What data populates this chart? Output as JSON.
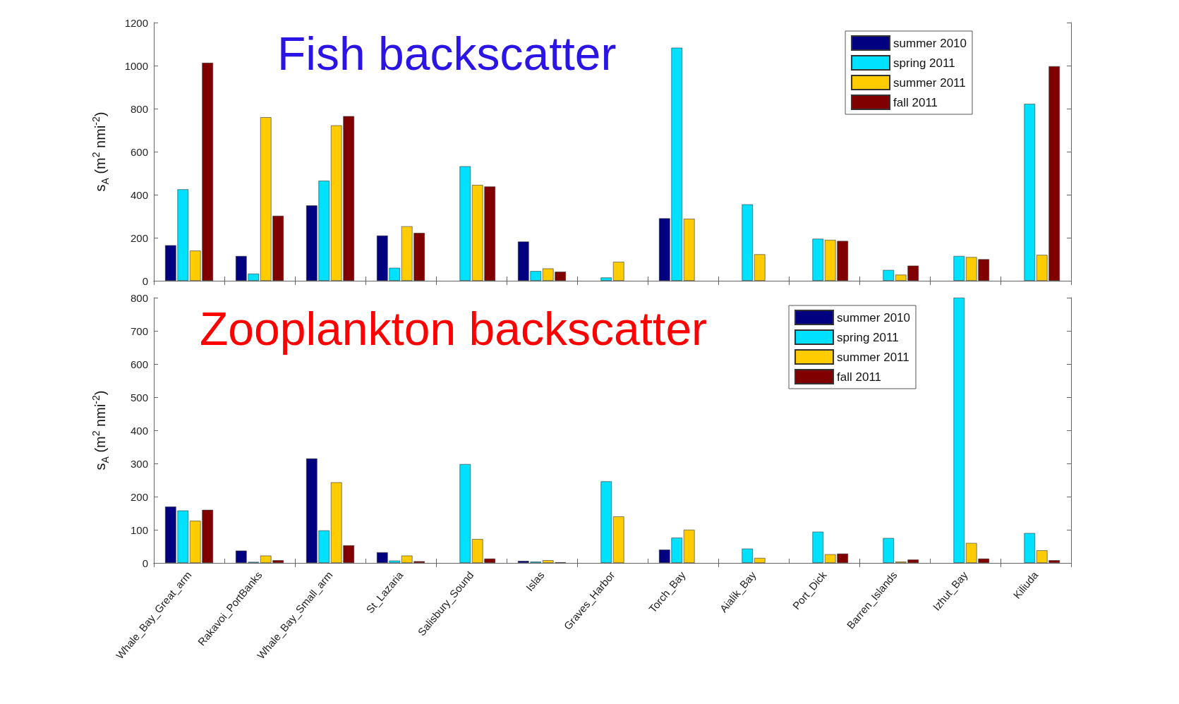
{
  "chart_data": [
    {
      "type": "bar",
      "title": "Fish backscatter",
      "ylabel": "s$_{A}$ (m$^{2}$ nmi$^{-2}$)",
      "categories": [
        null,
        null,
        null,
        null,
        null,
        null,
        null,
        null,
        null,
        null,
        null,
        null,
        null
      ],
      "series": [
        {
          "name": "summer 2010",
          "color": "#000080",
          "values": [
            165,
            115,
            350,
            210,
            null,
            182,
            null,
            290,
            null,
            null,
            null,
            null,
            null
          ]
        },
        {
          "name": "spring 2011",
          "color": "#00e0ff",
          "values": [
            425,
            33,
            465,
            60,
            532,
            45,
            15,
            1083,
            355,
            195,
            50,
            115,
            822
          ]
        },
        {
          "name": "summer 2011",
          "color": "#ffcc00",
          "values": [
            140,
            760,
            722,
            253,
            445,
            57,
            88,
            288,
            123,
            190,
            28,
            110,
            120
          ]
        },
        {
          "name": "fall 2011",
          "color": "#800000",
          "values": [
            1013,
            302,
            765,
            222,
            438,
            42,
            null,
            null,
            null,
            185,
            70,
            100,
            997
          ]
        }
      ],
      "ylim": [
        0,
        1200
      ],
      "yticks": [
        0,
        200,
        400,
        600,
        800,
        1000,
        1200
      ],
      "grid": false,
      "legend": "top right",
      "tick_labels": "y"
    },
    {
      "type": "bar",
      "title": "Zooplankton backscatter",
      "ylabel": "s$_{A}$ (m$^{2}$ nmi$^{-2}$)",
      "categories": [
        "Whale_Bay_Great_arm",
        "Rakavoi_PortBanks",
        "Whale_Bay_Small_arm",
        "St_Lazaria",
        "Salisbury_Sound",
        "Islas",
        "Graves_Harbor",
        "Torch_Bay",
        "Aialik_Bay",
        "Port_Dick",
        "Barren_Islands",
        "Izhut_Bay",
        "Kiliuda"
      ],
      "series": [
        {
          "name": "summer 2010",
          "color": "#000080",
          "values": [
            170,
            37,
            315,
            32,
            null,
            6,
            null,
            40,
            null,
            null,
            null,
            null,
            null
          ]
        },
        {
          "name": "spring 2011",
          "color": "#00e0ff",
          "values": [
            158,
            3,
            98,
            7,
            298,
            4,
            246,
            76,
            43,
            94,
            75,
            800,
            90
          ]
        },
        {
          "name": "summer 2011",
          "color": "#ffcc00",
          "values": [
            127,
            22,
            243,
            22,
            72,
            8,
            140,
            100,
            15,
            26,
            4,
            60,
            38
          ]
        },
        {
          "name": "fall 2011",
          "color": "#800000",
          "values": [
            160,
            8,
            53,
            5,
            13,
            2,
            null,
            null,
            null,
            28,
            10,
            13,
            8
          ]
        }
      ],
      "ylim": [
        0,
        800
      ],
      "yticks": [
        0,
        100,
        200,
        300,
        400,
        500,
        600,
        700,
        800
      ],
      "grid": false,
      "legend": "top right"
    }
  ]
}
